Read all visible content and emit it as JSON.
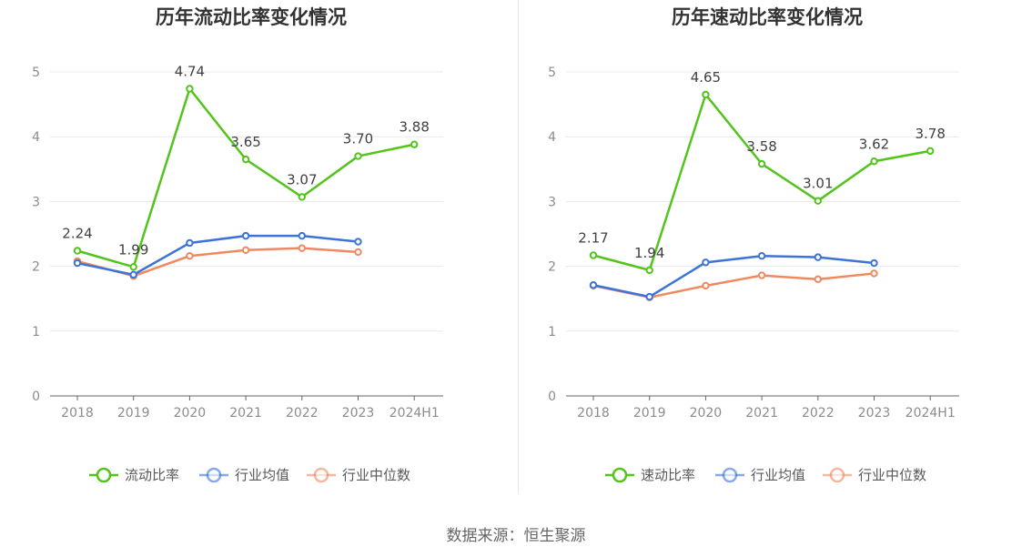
{
  "footer": {
    "source": "数据来源：恒生聚源"
  },
  "colors": {
    "main": "#52c41a",
    "avg": "#3b73d9",
    "median": "#f08860",
    "grid": "#e8e8e8",
    "axis": "#666666"
  },
  "chart_data": [
    {
      "type": "line",
      "title": "历年流动比率变化情况",
      "categories": [
        "2018",
        "2019",
        "2020",
        "2021",
        "2022",
        "2023",
        "2024H1"
      ],
      "ylim": [
        0,
        5
      ],
      "yticks": [
        "0",
        "1",
        "2",
        "3",
        "4",
        "5"
      ],
      "grid": true,
      "legend_position": "bottom",
      "series": [
        {
          "name": "流动比率",
          "values": [
            2.24,
            1.99,
            4.74,
            3.65,
            3.07,
            3.7,
            3.88
          ],
          "labels": [
            "2.24",
            "1.99",
            "4.74",
            "3.65",
            "3.07",
            "3.70",
            "3.88"
          ],
          "color": "#52c41a"
        },
        {
          "name": "行业均值",
          "values": [
            2.05,
            1.87,
            2.36,
            2.47,
            2.47,
            2.38,
            null
          ],
          "color": "#3b73d9"
        },
        {
          "name": "行业中位数",
          "values": [
            2.08,
            1.85,
            2.16,
            2.25,
            2.28,
            2.22,
            null
          ],
          "color": "#f08860"
        }
      ]
    },
    {
      "type": "line",
      "title": "历年速动比率变化情况",
      "categories": [
        "2018",
        "2019",
        "2020",
        "2021",
        "2022",
        "2023",
        "2024H1"
      ],
      "ylim": [
        0,
        5
      ],
      "yticks": [
        "0",
        "1",
        "2",
        "3",
        "4",
        "5"
      ],
      "grid": true,
      "legend_position": "bottom",
      "series": [
        {
          "name": "速动比率",
          "values": [
            2.17,
            1.94,
            4.65,
            3.58,
            3.01,
            3.62,
            3.78
          ],
          "labels": [
            "2.17",
            "1.94",
            "4.65",
            "3.58",
            "3.01",
            "3.62",
            "3.78"
          ],
          "color": "#52c41a"
        },
        {
          "name": "行业均值",
          "values": [
            1.71,
            1.53,
            2.06,
            2.16,
            2.14,
            2.05,
            null
          ],
          "color": "#3b73d9"
        },
        {
          "name": "行业中位数",
          "values": [
            1.7,
            1.52,
            1.7,
            1.86,
            1.8,
            1.89,
            null
          ],
          "color": "#f08860"
        }
      ]
    }
  ]
}
